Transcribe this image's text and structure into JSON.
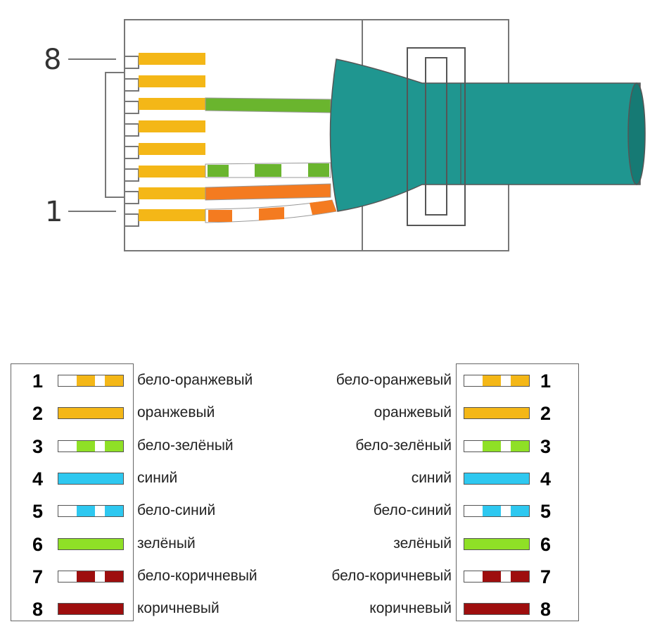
{
  "connector": {
    "pin_labels": [
      "8",
      "1"
    ],
    "colors": {
      "pin_gold": "#f4b717",
      "jacket": "#1f9690",
      "jacket_dark": "#167a74",
      "wire_green": "#6ab52e",
      "wire_orange": "#f47b20",
      "outline": "#777777"
    }
  },
  "legend": {
    "left": [
      {
        "num": "1",
        "label": "бело-оранжевый",
        "color": "#f4b717",
        "striped": true
      },
      {
        "num": "2",
        "label": "оранжевый",
        "color": "#f4b717",
        "striped": false
      },
      {
        "num": "3",
        "label": "бело-зелёный",
        "color": "#8fe026",
        "striped": true
      },
      {
        "num": "4",
        "label": "синий",
        "color": "#2ec8f0",
        "striped": false
      },
      {
        "num": "5",
        "label": "бело-синий",
        "color": "#2ec8f0",
        "striped": true
      },
      {
        "num": "6",
        "label": "зелёный",
        "color": "#8fe026",
        "striped": false
      },
      {
        "num": "7",
        "label": "бело-коричневый",
        "color": "#9e0e0e",
        "striped": true
      },
      {
        "num": "8",
        "label": "коричневый",
        "color": "#9e0e0e",
        "striped": false
      }
    ],
    "right": [
      {
        "num": "1",
        "label": "бело-оранжевый",
        "color": "#f4b717",
        "striped": true
      },
      {
        "num": "2",
        "label": "оранжевый",
        "color": "#f4b717",
        "striped": false
      },
      {
        "num": "3",
        "label": "бело-зелёный",
        "color": "#8fe026",
        "striped": true
      },
      {
        "num": "4",
        "label": "синий",
        "color": "#2ec8f0",
        "striped": false
      },
      {
        "num": "5",
        "label": "бело-синий",
        "color": "#2ec8f0",
        "striped": true
      },
      {
        "num": "6",
        "label": "зелёный",
        "color": "#8fe026",
        "striped": false
      },
      {
        "num": "7",
        "label": "бело-коричневый",
        "color": "#9e0e0e",
        "striped": true
      },
      {
        "num": "8",
        "label": "коричневый",
        "color": "#9e0e0e",
        "striped": false
      }
    ]
  }
}
